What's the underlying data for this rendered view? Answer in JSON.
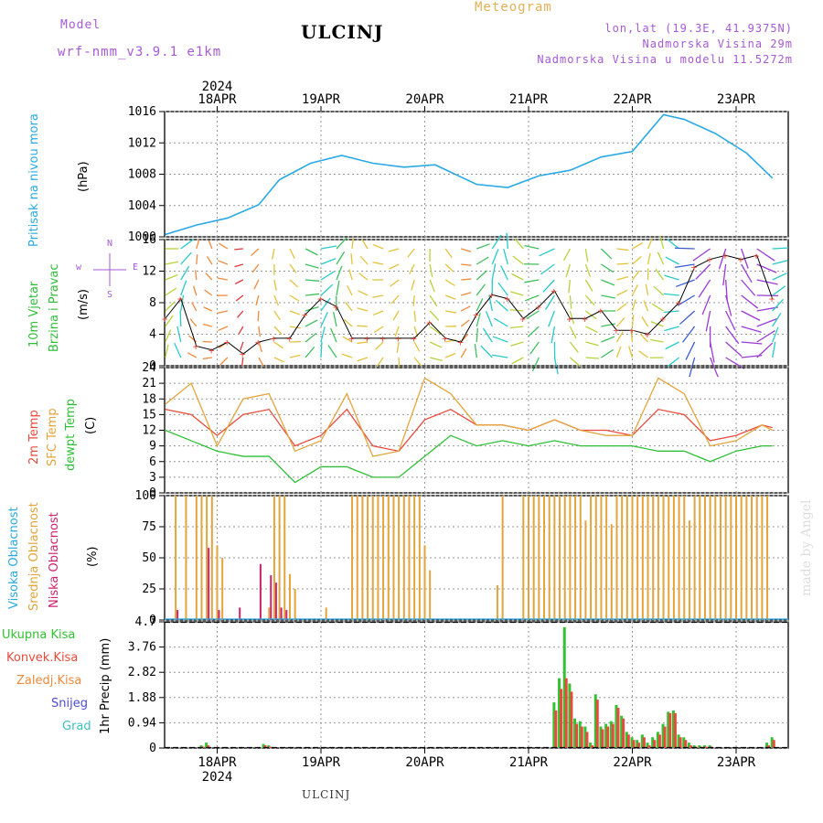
{
  "header": {
    "model_label": "Model",
    "model_name": "wrf-nmm_v3.9.1  e1km",
    "station": "ULCINJ",
    "title": "Meteogram",
    "coords": "lon,lat (19.3E, 41.9375N)",
    "elevation": "Nadmorska Visina 29m",
    "model_elevation": "Nadmorska Visina u modelu 11.5272m"
  },
  "footer": {
    "station": "ULCINJ",
    "credit": "made by Angel"
  },
  "time_axis": {
    "year": "2024",
    "ticks": [
      "18APR",
      "19APR",
      "20APR",
      "21APR",
      "22APR",
      "23APR"
    ]
  },
  "colors": {
    "pressure": "#29a9e6",
    "temp2m": "#e84b3c",
    "sfc": "#e3a43b",
    "dewpt": "#2fbf37",
    "high_cloud": "#29a9e6",
    "mid_cloud": "#e3a43b",
    "low_cloud": "#d0216e",
    "total_precip": "#32c232",
    "convective": "#e84b3c",
    "snow": "#4b4bd6",
    "hail": "#3fbfbf"
  },
  "panels": {
    "pressure": {
      "label": "Pritisak na nivou mora",
      "unit": "(hPa)"
    },
    "wind": {
      "label1": "10m Vjetar",
      "label2": "Brzina i Pravac",
      "unit": "(m/s)",
      "compass_w": "w",
      "compass_e": "E",
      "compass_n": "N",
      "compass_s": "S"
    },
    "temp": {
      "label1": "2m Temp",
      "label2": "SFC Temp",
      "label3": "dewpt Temp",
      "unit": "(C)"
    },
    "cloud": {
      "label1": "Visoka Oblacnost",
      "label2": "Srednja Oblacnost",
      "label3": "Niska Oblacnost",
      "unit": "(%)"
    },
    "precip": {
      "label": "1hr Precip (mm)",
      "legend": [
        "Ukupna Kisa",
        "Konvek.Kisa",
        "Zaledj.Kisa",
        "Snijeg",
        "Grad"
      ]
    }
  },
  "chart_data": [
    {
      "type": "line",
      "title": "Pritisak na nivou mora",
      "ylabel": "(hPa)",
      "ylim": [
        1000,
        1016
      ],
      "yticks": [
        1000,
        1004,
        1008,
        1012,
        1016
      ],
      "grid": true,
      "x_days": [
        0,
        0.3,
        0.6,
        0.9,
        1.1,
        1.4,
        1.7,
        2.0,
        2.3,
        2.6,
        3.0,
        3.3,
        3.6,
        3.9,
        4.2,
        4.5,
        4.8,
        5.0,
        5.3,
        5.6,
        5.85
      ],
      "series": [
        {
          "name": "pressure",
          "values": [
            1000.3,
            1001.5,
            1002.4,
            1004.1,
            1007.3,
            1009.4,
            1010.4,
            1009.4,
            1008.9,
            1009.2,
            1006.7,
            1006.3,
            1007.8,
            1008.5,
            1010.2,
            1010.9,
            1015.6,
            1015.0,
            1013.2,
            1010.7,
            1007.5
          ]
        }
      ]
    },
    {
      "type": "line",
      "title": "10m Vjetar Brzina i Pravac",
      "ylabel": "(m/s)",
      "ylim": [
        0,
        16
      ],
      "yticks": [
        0,
        4,
        8,
        12,
        16
      ],
      "grid": true,
      "x_days": [
        0,
        0.15,
        0.3,
        0.45,
        0.6,
        0.75,
        0.9,
        1.05,
        1.2,
        1.35,
        1.5,
        1.65,
        1.8,
        1.95,
        2.1,
        2.25,
        2.4,
        2.55,
        2.7,
        2.85,
        3.0,
        3.15,
        3.3,
        3.45,
        3.6,
        3.75,
        3.9,
        4.05,
        4.2,
        4.35,
        4.5,
        4.65,
        4.8,
        4.95,
        5.1,
        5.25,
        5.4,
        5.55,
        5.7,
        5.85
      ],
      "series": [
        {
          "name": "wind_speed",
          "values": [
            6,
            8.5,
            2.5,
            2.0,
            3.0,
            1.5,
            3.0,
            3.5,
            3.5,
            6.5,
            8.5,
            7.5,
            3.5,
            3.5,
            3.5,
            3.5,
            3.5,
            5.5,
            3.5,
            3.0,
            6.5,
            9,
            8.5,
            6.0,
            7.5,
            9.5,
            6.0,
            6.0,
            7.0,
            4.5,
            4.5,
            4.0,
            6.0,
            8.0,
            12.5,
            13.5,
            14.0,
            13.5,
            14.0,
            8.5
          ]
        }
      ]
    },
    {
      "type": "line",
      "title": "Temp",
      "ylabel": "(C)",
      "ylim": [
        0,
        24
      ],
      "yticks": [
        0,
        3,
        6,
        9,
        12,
        15,
        18,
        21,
        24
      ],
      "grid": true,
      "x_days": [
        0,
        0.25,
        0.5,
        0.75,
        1.0,
        1.25,
        1.5,
        1.75,
        2.0,
        2.25,
        2.5,
        2.75,
        3.0,
        3.25,
        3.5,
        3.75,
        4.0,
        4.25,
        4.5,
        4.75,
        5.0,
        5.25,
        5.5,
        5.75,
        5.85
      ],
      "series": [
        {
          "name": "2m Temp",
          "values": [
            16,
            15,
            11,
            15,
            16,
            9,
            11,
            16,
            9,
            8,
            14,
            16,
            13,
            13,
            12,
            14,
            12,
            12,
            11,
            16,
            15,
            10,
            11,
            13,
            12.5
          ]
        },
        {
          "name": "SFC Temp",
          "values": [
            17,
            21,
            9,
            18,
            19,
            8,
            10,
            19,
            7,
            8,
            22,
            19,
            13,
            13,
            12,
            14,
            12,
            11,
            11,
            22,
            19,
            9,
            10,
            13,
            12
          ]
        },
        {
          "name": "dewpt Temp",
          "values": [
            12,
            10,
            8,
            7,
            7,
            2,
            5,
            5,
            3,
            3,
            7,
            11,
            9,
            10,
            9,
            10,
            9,
            9,
            9,
            8,
            8,
            6,
            8,
            9,
            9
          ]
        }
      ]
    },
    {
      "type": "bar",
      "title": "Oblacnost",
      "ylabel": "(%)",
      "ylim": [
        0,
        100
      ],
      "yticks": [
        0,
        25,
        50,
        75,
        100
      ],
      "grid": true,
      "x_days": [
        0.1,
        0.2,
        0.3,
        0.35,
        0.4,
        0.45,
        0.5,
        0.55,
        0.6,
        0.7,
        0.9,
        1.0,
        1.05,
        1.1,
        1.15,
        1.2,
        1.25,
        1.55,
        1.8,
        1.85,
        1.9,
        1.95,
        2.0,
        2.05,
        2.1,
        2.15,
        2.2,
        2.25,
        2.3,
        2.35,
        2.4,
        2.45,
        2.5,
        2.55,
        2.6,
        3.2,
        3.25,
        3.45,
        3.5,
        3.55,
        3.6,
        3.65,
        3.7,
        3.75,
        3.8,
        3.85,
        3.9,
        3.95,
        4.0,
        4.05,
        4.1,
        4.15,
        4.2,
        4.25,
        4.3,
        4.35,
        4.4,
        4.45,
        4.5,
        4.55,
        4.6,
        4.65,
        4.7,
        4.75,
        4.8,
        4.85,
        4.9,
        4.95,
        5.0,
        5.05,
        5.1,
        5.15,
        5.2,
        5.25,
        5.3,
        5.35,
        5.4,
        5.45,
        5.5,
        5.55,
        5.6,
        5.65,
        5.7,
        5.75,
        5.8
      ],
      "series": [
        {
          "name": "Srednja Oblacnost",
          "values": [
            100,
            100,
            100,
            100,
            100,
            100,
            60,
            50,
            0,
            0,
            0,
            10,
            100,
            100,
            100,
            37,
            25,
            10,
            100,
            100,
            100,
            100,
            100,
            100,
            100,
            100,
            100,
            100,
            100,
            100,
            100,
            100,
            60,
            40,
            0,
            28,
            100,
            100,
            100,
            100,
            100,
            100,
            100,
            100,
            100,
            100,
            100,
            100,
            100,
            80,
            100,
            100,
            100,
            100,
            77,
            100,
            100,
            100,
            100,
            100,
            100,
            100,
            100,
            100,
            100,
            100,
            100,
            100,
            100,
            80,
            100,
            100,
            100,
            100,
            100,
            100,
            100,
            100,
            100,
            100,
            100,
            100,
            100,
            100,
            100
          ]
        },
        {
          "name": "Niska Oblacnost",
          "values": [
            8,
            0,
            0,
            0,
            58,
            0,
            8,
            0,
            0,
            10,
            45,
            36,
            30,
            10,
            8,
            0,
            0,
            0,
            0,
            0,
            0,
            0,
            0,
            0,
            0,
            0,
            0,
            0,
            0,
            0,
            0,
            0,
            0,
            0,
            0,
            0,
            0,
            0,
            0,
            0,
            0,
            0,
            0,
            0,
            0,
            0,
            0,
            0,
            0,
            0,
            0,
            0,
            0,
            0,
            0,
            0,
            0,
            0,
            0,
            0,
            0,
            0,
            0,
            0,
            0,
            0,
            0,
            0,
            0,
            0,
            0,
            0,
            0,
            0,
            0,
            0,
            0,
            0,
            0,
            0,
            0,
            0,
            0,
            0,
            0
          ]
        },
        {
          "name": "Visoka Oblacnost",
          "values": [
            0,
            0,
            0,
            0,
            0,
            0,
            0,
            0,
            0,
            0,
            0,
            0,
            0,
            0,
            0,
            0,
            0,
            0,
            0,
            0,
            0,
            0,
            0,
            0,
            0,
            0,
            0,
            0,
            0,
            0,
            0,
            0,
            0,
            0,
            0,
            0,
            0,
            0,
            0,
            0,
            0,
            0,
            0,
            0,
            0,
            0,
            0,
            0,
            0,
            0,
            0,
            0,
            0,
            0,
            0,
            0,
            0,
            0,
            0,
            0,
            0,
            0,
            0,
            0,
            0,
            0,
            0,
            0,
            0,
            0,
            0,
            0,
            0,
            0,
            0,
            0,
            0,
            0,
            0,
            0,
            0,
            0,
            0,
            0,
            0
          ]
        }
      ]
    },
    {
      "type": "bar",
      "title": "1hr Precip",
      "ylabel": "1hr Precip (mm)",
      "ylim": [
        0,
        4.7
      ],
      "yticks": [
        0,
        0.94,
        1.88,
        2.82,
        3.76,
        4.7
      ],
      "grid": true,
      "x_days": [
        0.35,
        0.4,
        0.95,
        1.0,
        3.75,
        3.8,
        3.85,
        3.9,
        3.95,
        4.0,
        4.05,
        4.1,
        4.15,
        4.2,
        4.25,
        4.3,
        4.35,
        4.4,
        4.45,
        4.5,
        4.55,
        4.6,
        4.65,
        4.7,
        4.75,
        4.8,
        4.85,
        4.9,
        4.95,
        5.0,
        5.05,
        5.1,
        5.15,
        5.2,
        5.25,
        5.8,
        5.85
      ],
      "series": [
        {
          "name": "Ukupna Kisa",
          "values": [
            0.1,
            0.2,
            0.15,
            0.1,
            1.7,
            2.6,
            4.5,
            2.4,
            1.1,
            1.0,
            0.8,
            0.2,
            2.0,
            0.8,
            0.9,
            1.0,
            1.6,
            1.2,
            0.6,
            0.4,
            0.3,
            0.5,
            0.2,
            0.4,
            0.6,
            0.9,
            1.35,
            1.4,
            0.5,
            0.4,
            0.2,
            0.1,
            0.1,
            0.1,
            0.1,
            0.2,
            0.4
          ]
        },
        {
          "name": "Konvek.Kisa",
          "values": [
            0.05,
            0.1,
            0.1,
            0.05,
            1.4,
            2.2,
            2.6,
            2.1,
            0.9,
            0.8,
            0.6,
            0.1,
            1.8,
            0.7,
            0.8,
            0.9,
            1.5,
            1.1,
            0.5,
            0.3,
            0.2,
            0.4,
            0.1,
            0.3,
            0.5,
            0.8,
            1.3,
            1.3,
            0.4,
            0.3,
            0.1,
            0.05,
            0.05,
            0.05,
            0.05,
            0.1,
            0.3
          ]
        }
      ]
    }
  ]
}
